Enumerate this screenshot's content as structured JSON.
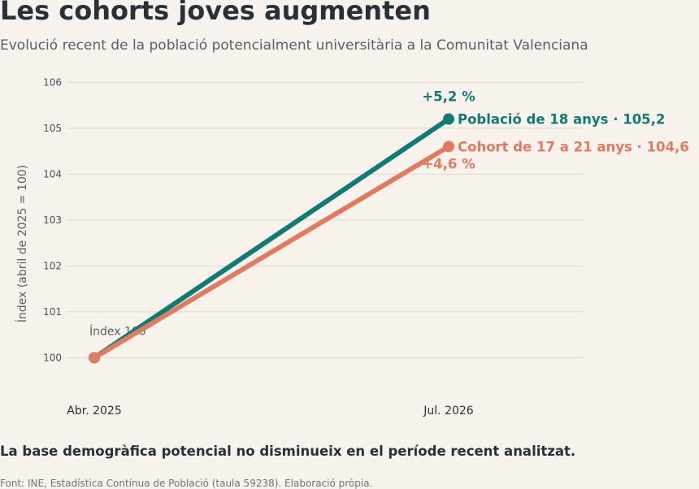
{
  "title": "Les cohorts joves augmenten",
  "subtitle": "Evolució recent de la població potencialment universitària a la Comunitat Valenciana",
  "takeaway": "La base demogràfica potencial no disminueix en el període recent analitzat.",
  "source": "Font: INE, Estadística Contínua de Població (taula 59238). Elaboració pròpia.",
  "colors": {
    "series_18": "#117a72",
    "series_17_21": "#e07b5f",
    "grid": "#ddd6cf",
    "text": "#263238",
    "muted": "#5a6166"
  },
  "chart_data": {
    "type": "line",
    "ylabel": "Índex (abril de 2025 = 100)",
    "ylim": [
      99.3,
      106.2
    ],
    "yticks": [
      100,
      101,
      102,
      103,
      104,
      105,
      106
    ],
    "x": [
      "Abr. 2025",
      "Jul. 2026"
    ],
    "grid": true,
    "baseline_annotation": "Índex 100",
    "series": [
      {
        "name": "Població de 18 anys",
        "values": [
          100,
          105.2
        ],
        "end_label": "Població de 18 anys  ·  105,2",
        "change_label": "+5,2 %",
        "change_position": "above",
        "color": "#117a72"
      },
      {
        "name": "Cohort de 17 a 21 anys",
        "values": [
          100,
          104.6
        ],
        "end_label": "Cohort de 17 a 21 anys  ·  104,6",
        "change_label": "+4,6 %",
        "change_position": "below",
        "color": "#e07b5f"
      }
    ]
  }
}
